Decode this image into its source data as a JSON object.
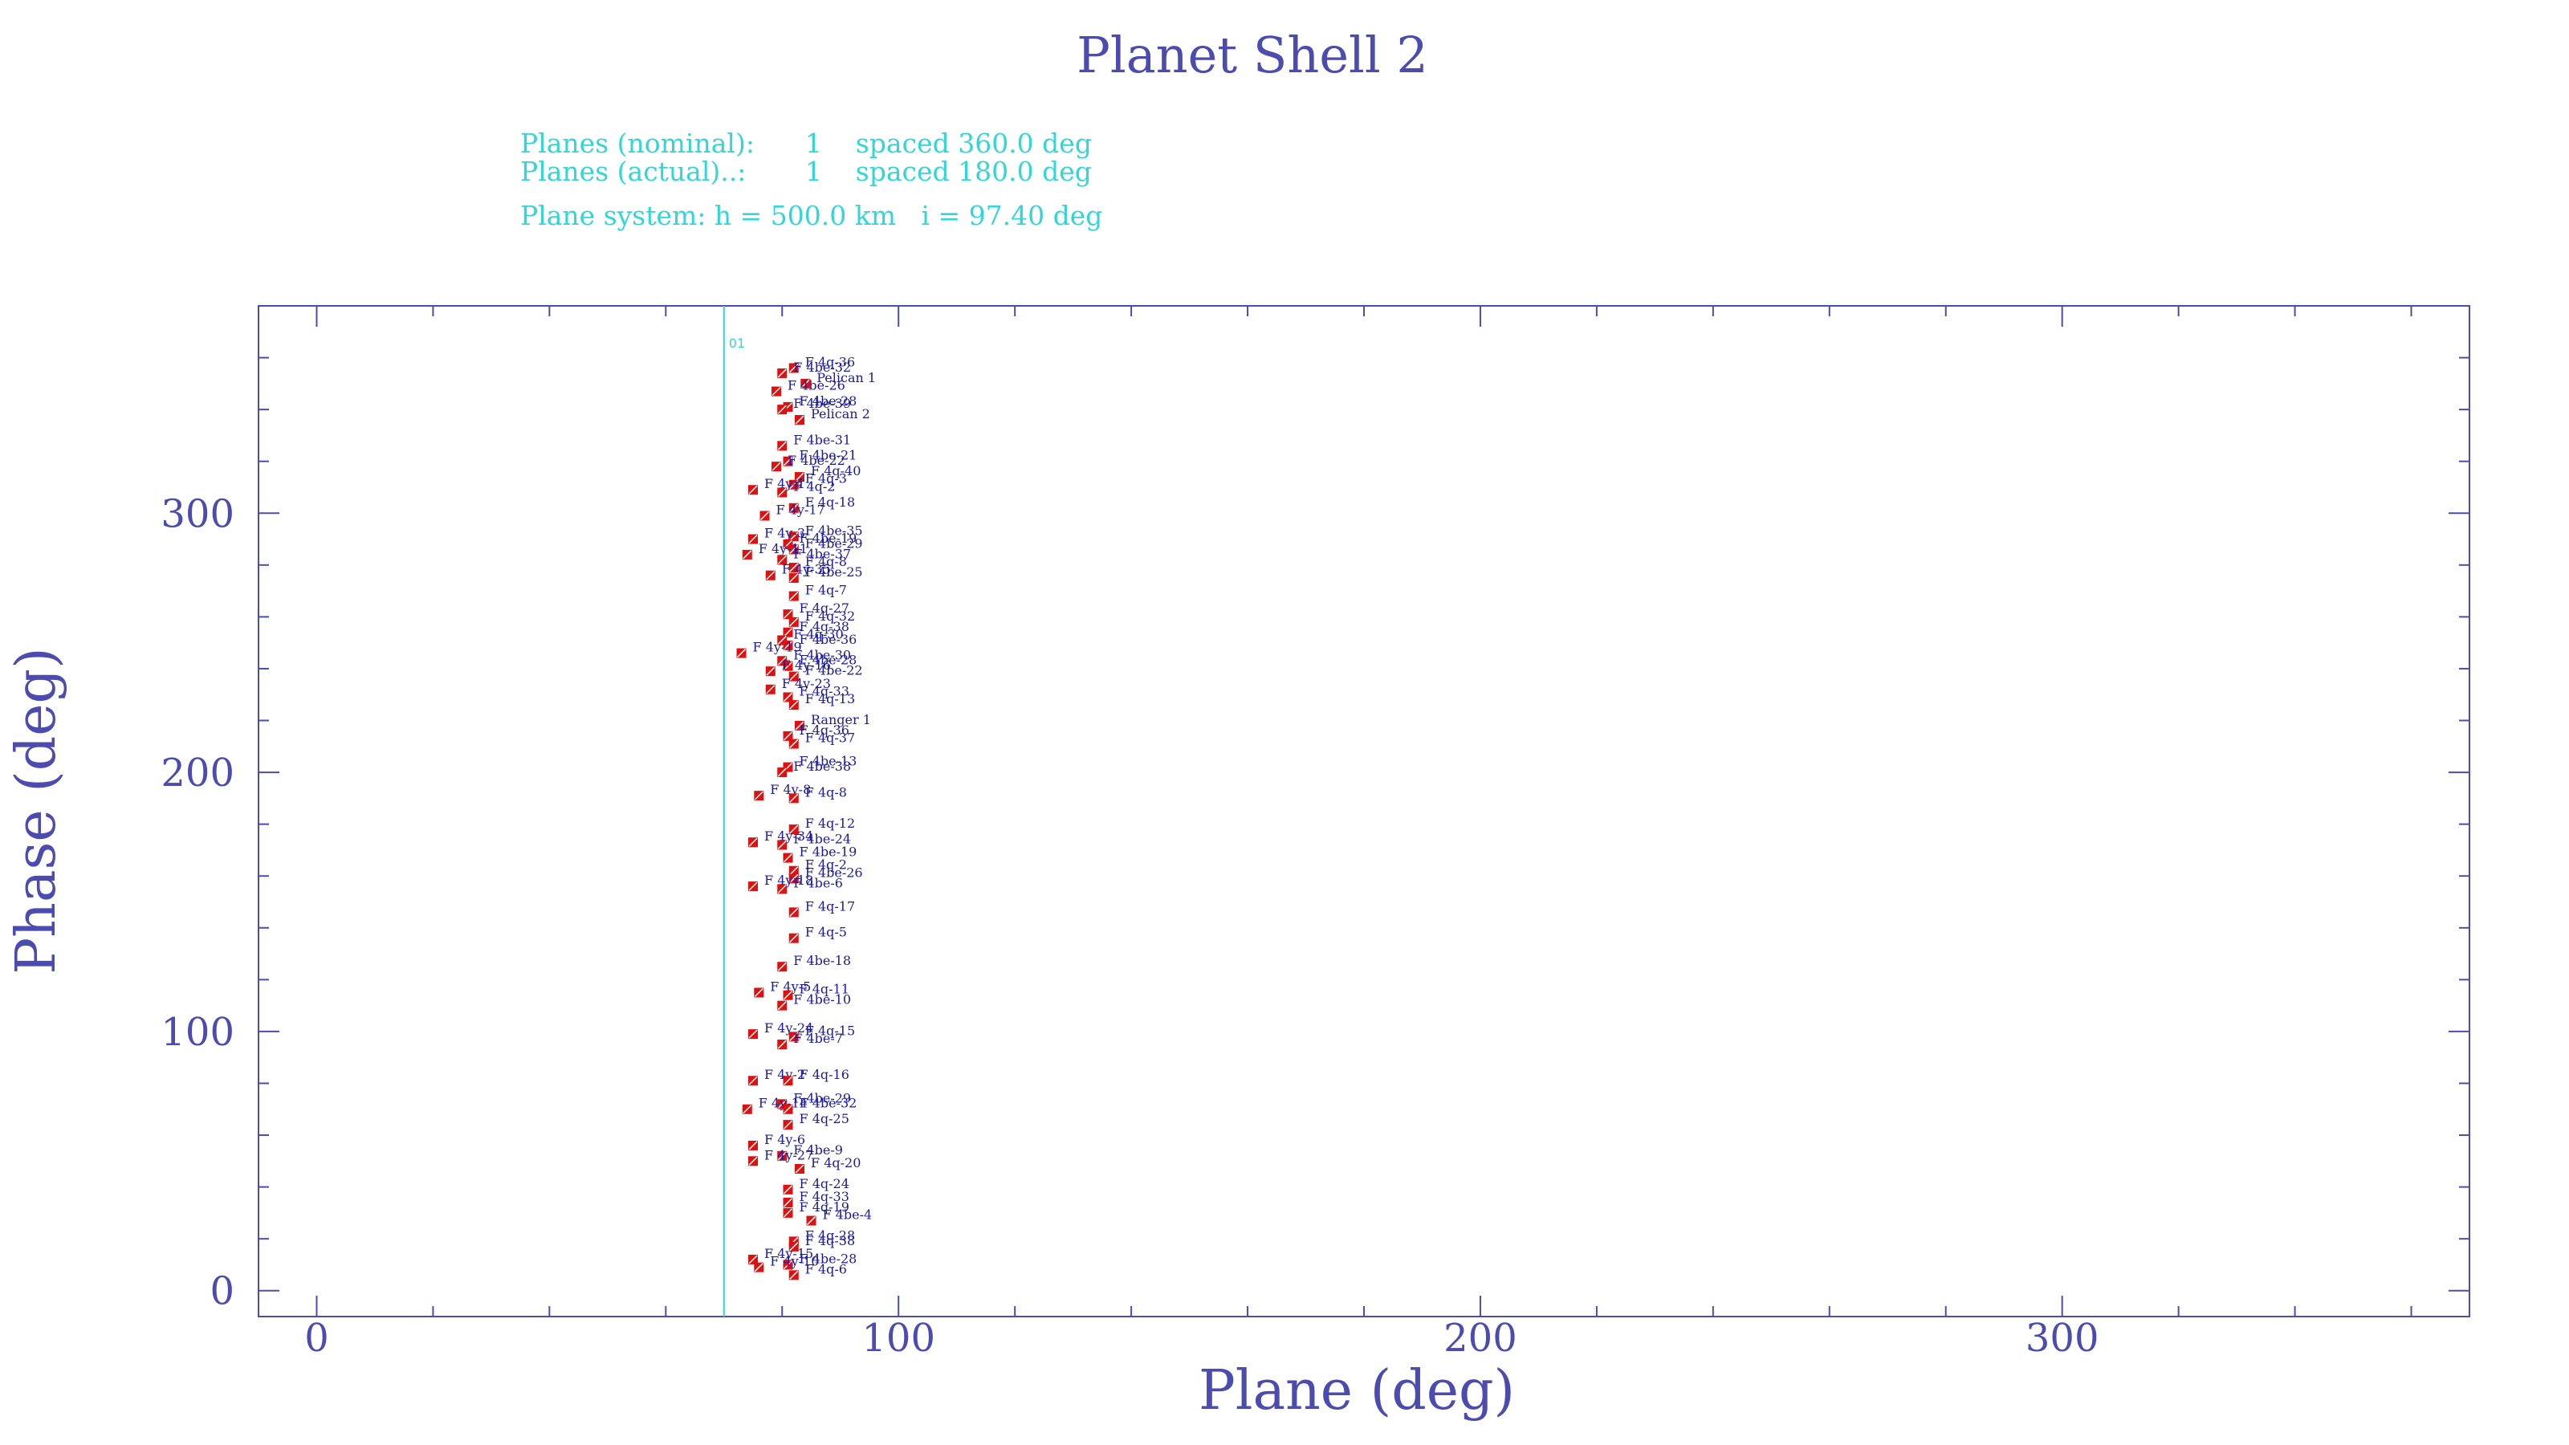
{
  "chart_data": {
    "type": "scatter",
    "title": "Planet Shell 2",
    "info_lines": [
      "Planes (nominal):      1    spaced 360.0 deg",
      "Planes (actual)..:       1    spaced 180.0 deg",
      "Plane system: h = 500.0 km   i = 97.40 deg"
    ],
    "xlabel": "Plane (deg)",
    "ylabel": "Phase (deg)",
    "xlim": [
      -10,
      370
    ],
    "ylim": [
      -10,
      380
    ],
    "xticks_major": [
      0,
      100,
      200,
      300
    ],
    "yticks_major": [
      0,
      100,
      200,
      300
    ],
    "plane_lines": [
      {
        "x": 70,
        "label": "01"
      }
    ],
    "points": [
      {
        "x": 82,
        "y": 356,
        "label": "F 4q-36"
      },
      {
        "x": 80,
        "y": 354,
        "label": "F 4be-32"
      },
      {
        "x": 84,
        "y": 350,
        "label": "Pelican 1"
      },
      {
        "x": 79,
        "y": 347,
        "label": "F 4be-26"
      },
      {
        "x": 81,
        "y": 341,
        "label": "F 4be-28"
      },
      {
        "x": 80,
        "y": 340,
        "label": "F 4be-39"
      },
      {
        "x": 83,
        "y": 336,
        "label": "Pelican 2"
      },
      {
        "x": 80,
        "y": 326,
        "label": "F 4be-31"
      },
      {
        "x": 81,
        "y": 320,
        "label": "F 4be-21"
      },
      {
        "x": 79,
        "y": 318,
        "label": "F 4be-22"
      },
      {
        "x": 83,
        "y": 314,
        "label": "F 4q-40"
      },
      {
        "x": 82,
        "y": 311,
        "label": "F 4q-3"
      },
      {
        "x": 75,
        "y": 309,
        "label": "F 4y-1"
      },
      {
        "x": 80,
        "y": 308,
        "label": "F 4q-2"
      },
      {
        "x": 82,
        "y": 302,
        "label": "F 4q-18"
      },
      {
        "x": 77,
        "y": 299,
        "label": "F 4y-17"
      },
      {
        "x": 82,
        "y": 291,
        "label": "F 4be-35"
      },
      {
        "x": 75,
        "y": 290,
        "label": "F 4y-3"
      },
      {
        "x": 81,
        "y": 288,
        "label": "F 4be-19"
      },
      {
        "x": 82,
        "y": 286,
        "label": "F 4be-29"
      },
      {
        "x": 74,
        "y": 284,
        "label": "F 4y-11"
      },
      {
        "x": 80,
        "y": 282,
        "label": "F 4be-37"
      },
      {
        "x": 82,
        "y": 279,
        "label": "F 4q-8"
      },
      {
        "x": 78,
        "y": 276,
        "label": "F 4y-35"
      },
      {
        "x": 82,
        "y": 275,
        "label": "F 4be-25"
      },
      {
        "x": 82,
        "y": 268,
        "label": "F 4q-7"
      },
      {
        "x": 81,
        "y": 261,
        "label": "F 4q-27"
      },
      {
        "x": 82,
        "y": 258,
        "label": "F 4q-32"
      },
      {
        "x": 81,
        "y": 254,
        "label": "F 4q-38"
      },
      {
        "x": 80,
        "y": 251,
        "label": "F 4q-30"
      },
      {
        "x": 81,
        "y": 249,
        "label": "F 4be-36"
      },
      {
        "x": 73,
        "y": 246,
        "label": "F 4y-19"
      },
      {
        "x": 80,
        "y": 243,
        "label": "F 4be-30"
      },
      {
        "x": 81,
        "y": 241,
        "label": "F 4be-28"
      },
      {
        "x": 78,
        "y": 239,
        "label": "F 4y-16"
      },
      {
        "x": 82,
        "y": 237,
        "label": "F 4be-22"
      },
      {
        "x": 78,
        "y": 232,
        "label": "F 4y-23"
      },
      {
        "x": 81,
        "y": 229,
        "label": "F 4q-33"
      },
      {
        "x": 82,
        "y": 226,
        "label": "F 4q-13"
      },
      {
        "x": 83,
        "y": 218,
        "label": "Ranger 1"
      },
      {
        "x": 81,
        "y": 214,
        "label": "F 4q-36"
      },
      {
        "x": 82,
        "y": 211,
        "label": "F 4q-37"
      },
      {
        "x": 81,
        "y": 202,
        "label": "F 4be-13"
      },
      {
        "x": 80,
        "y": 200,
        "label": "F 4be-38"
      },
      {
        "x": 76,
        "y": 191,
        "label": "F 4y-8"
      },
      {
        "x": 82,
        "y": 190,
        "label": "F 4q-8"
      },
      {
        "x": 82,
        "y": 178,
        "label": "F 4q-12"
      },
      {
        "x": 75,
        "y": 173,
        "label": "F 4y-34"
      },
      {
        "x": 80,
        "y": 172,
        "label": "F 4be-24"
      },
      {
        "x": 81,
        "y": 167,
        "label": "F 4be-19"
      },
      {
        "x": 82,
        "y": 162,
        "label": "F 4q-2"
      },
      {
        "x": 82,
        "y": 159,
        "label": "F 4be-26"
      },
      {
        "x": 75,
        "y": 156,
        "label": "F 4y-18"
      },
      {
        "x": 80,
        "y": 155,
        "label": "F 4be-6"
      },
      {
        "x": 82,
        "y": 146,
        "label": "F 4q-17"
      },
      {
        "x": 82,
        "y": 136,
        "label": "F 4q-5"
      },
      {
        "x": 80,
        "y": 125,
        "label": "F 4be-18"
      },
      {
        "x": 76,
        "y": 115,
        "label": "F 4y-5"
      },
      {
        "x": 81,
        "y": 114,
        "label": "F 4q-11"
      },
      {
        "x": 80,
        "y": 110,
        "label": "F 4be-10"
      },
      {
        "x": 75,
        "y": 99,
        "label": "F 4y-24"
      },
      {
        "x": 82,
        "y": 98,
        "label": "F 4q-15"
      },
      {
        "x": 80,
        "y": 95,
        "label": "F 4be-7"
      },
      {
        "x": 75,
        "y": 81,
        "label": "F 4y-2"
      },
      {
        "x": 81,
        "y": 81,
        "label": "F 4q-16"
      },
      {
        "x": 80,
        "y": 72,
        "label": "F 4be-29"
      },
      {
        "x": 74,
        "y": 70,
        "label": "F 4y-14"
      },
      {
        "x": 81,
        "y": 70,
        "label": "F 4be-32"
      },
      {
        "x": 81,
        "y": 64,
        "label": "F 4q-25"
      },
      {
        "x": 75,
        "y": 56,
        "label": "F 4y-6"
      },
      {
        "x": 80,
        "y": 52,
        "label": "F 4be-9"
      },
      {
        "x": 75,
        "y": 50,
        "label": "F 4y-27"
      },
      {
        "x": 83,
        "y": 47,
        "label": "F 4q-20"
      },
      {
        "x": 81,
        "y": 39,
        "label": "F 4q-24"
      },
      {
        "x": 81,
        "y": 34,
        "label": "F 4q-33"
      },
      {
        "x": 81,
        "y": 30,
        "label": "F 4q-19"
      },
      {
        "x": 85,
        "y": 27,
        "label": "F 4be-4"
      },
      {
        "x": 82,
        "y": 19,
        "label": "F 4q-28"
      },
      {
        "x": 82,
        "y": 17,
        "label": "F 4q-38"
      },
      {
        "x": 75,
        "y": 12,
        "label": "F 4y-15"
      },
      {
        "x": 81,
        "y": 10,
        "label": "F 4be-28"
      },
      {
        "x": 76,
        "y": 9,
        "label": "F 4y-10"
      },
      {
        "x": 82,
        "y": 6,
        "label": "F 4q-6"
      }
    ]
  },
  "colors": {
    "axis": "#4b4bb0",
    "info": "#33d6d6",
    "plane_line": "#33d6d6",
    "marker": "#e01010",
    "point_label": "#1a1aa0"
  }
}
